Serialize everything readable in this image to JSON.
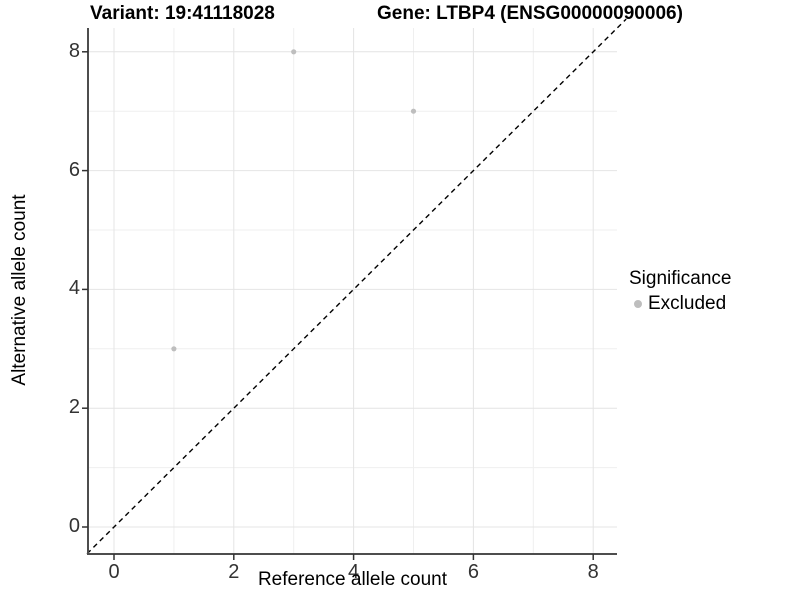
{
  "figure": {
    "background": "#ffffff"
  },
  "chart_data": {
    "type": "scatter",
    "title": "Variant: 19:41118028    Gene: LTBP4 (ENSG00000090006)",
    "title_left": "Variant: 19:41118028",
    "title_right": "Gene: LTBP4 (ENSG00000090006)",
    "xlabel": "Reference allele count",
    "ylabel": "Alternative allele count",
    "xlim": [
      -0.45,
      8.55
    ],
    "ylim": [
      -0.45,
      8.55
    ],
    "x_ticks": [
      0,
      2,
      4,
      6,
      8
    ],
    "y_ticks": [
      0,
      2,
      4,
      6,
      8
    ],
    "x_minor_ticks": [
      1,
      3,
      5,
      7
    ],
    "y_minor_ticks": [
      1,
      3,
      5,
      7
    ],
    "grid": true,
    "legend_position": "right",
    "series": [
      {
        "name": "Excluded",
        "color": "#bebebe",
        "points": [
          {
            "x": 1,
            "y": 3
          },
          {
            "x": 3,
            "y": 8
          },
          {
            "x": 5,
            "y": 7
          }
        ]
      }
    ],
    "reference_line": {
      "type": "identity",
      "slope": 1,
      "intercept": 0,
      "style": "dashed",
      "color": "#000000"
    },
    "legend": {
      "title": "Significance",
      "entries": [
        {
          "label": "Excluded",
          "color": "#bebebe"
        }
      ]
    }
  },
  "colors": {
    "grid_major": "#e4e4e4",
    "grid_minor": "#efefef",
    "axis_line": "#4d4d4d",
    "tick_mark": "#333333",
    "point": "#bebebe"
  }
}
